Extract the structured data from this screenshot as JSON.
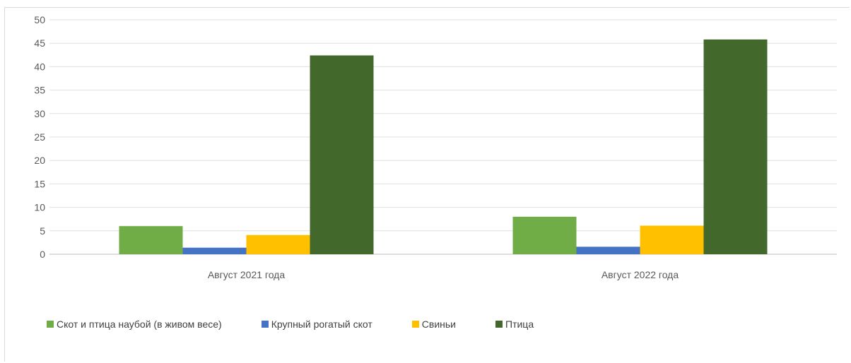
{
  "chart_data": {
    "type": "bar",
    "categories": [
      "Август 2021 года",
      "Август 2022 года"
    ],
    "series": [
      {
        "name": "Скот и птица наубой (в живом весе)",
        "values": [
          6.0,
          8.0
        ],
        "color": "#70ad47"
      },
      {
        "name": "Крупный рогатый скот",
        "values": [
          1.4,
          1.6
        ],
        "color": "#4472c4"
      },
      {
        "name": "Свиньи",
        "values": [
          4.1,
          6.1
        ],
        "color": "#ffc000"
      },
      {
        "name": "Птица",
        "values": [
          42.4,
          45.8
        ],
        "color": "#43682b"
      }
    ],
    "ylim": [
      0,
      50
    ],
    "yticks": [
      "0",
      "5",
      "10",
      "15",
      "20",
      "25",
      "30",
      "35",
      "40",
      "45",
      "50"
    ],
    "grid": true,
    "legend_position": "bottom-left"
  }
}
